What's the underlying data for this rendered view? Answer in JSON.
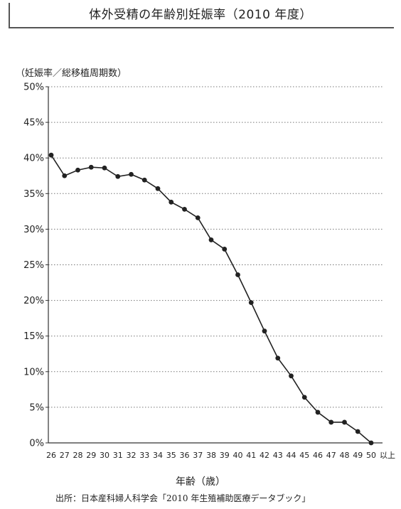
{
  "chart_data": {
    "type": "line",
    "title": "体外受精の年齢別妊娠率（2010 年度）",
    "ylabel": "（妊娠率／総移植周期数）",
    "xlabel": "年齢（歳）",
    "x_suffix": "以上",
    "source": "出所：日本産科婦人科学会「2010 年生殖補助医療データブック」",
    "x": [
      26,
      27,
      28,
      29,
      30,
      31,
      32,
      33,
      34,
      35,
      36,
      37,
      38,
      39,
      40,
      41,
      42,
      43,
      44,
      45,
      46,
      47,
      48,
      49,
      50
    ],
    "y_ticks": [
      "0%",
      "5%",
      "10%",
      "15%",
      "20%",
      "25%",
      "30%",
      "35%",
      "40%",
      "45%",
      "50%"
    ],
    "ylim": [
      0,
      50
    ],
    "grid": true,
    "series": [
      {
        "values": [
          40.4,
          37.5,
          38.3,
          38.7,
          38.6,
          37.4,
          37.7,
          36.9,
          35.7,
          33.8,
          32.8,
          31.6,
          28.5,
          27.2,
          23.6,
          19.7,
          15.7,
          11.9,
          9.4,
          6.4,
          4.3,
          2.9,
          2.9,
          1.6,
          0.0
        ]
      }
    ]
  }
}
